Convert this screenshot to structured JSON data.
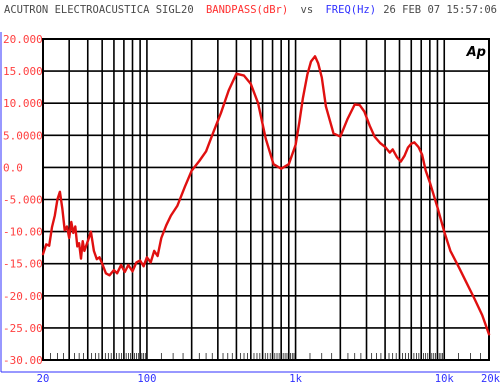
{
  "header": {
    "device": "ACUTRON ELECTROACUSTICA SIGL20",
    "y_measure": "BANDPASS(dBr)",
    "vs": "vs",
    "x_measure": "FREQ(Hz)",
    "date": "26 FEB 07 15:57:06"
  },
  "logo": {
    "text": "Ap"
  },
  "colors": {
    "device_text": "#4a4a4a",
    "y_label": "#ff3030",
    "x_label": "#3030ff",
    "trace": "#e01010",
    "grid": "#000000",
    "axis": "#3030ff"
  },
  "chart_data": {
    "type": "line",
    "x_scale": "log",
    "xlim": [
      20,
      20000
    ],
    "ylim": [
      -30,
      20
    ],
    "grid": true,
    "xticks": [
      {
        "value": 20,
        "label": "20"
      },
      {
        "value": 100,
        "label": "100"
      },
      {
        "value": 1000,
        "label": "1k"
      },
      {
        "value": 10000,
        "label": "10k"
      },
      {
        "value": 20000,
        "label": "20k"
      }
    ],
    "yticks": [
      {
        "value": 20,
        "label": "20.000"
      },
      {
        "value": 15,
        "label": "15.000"
      },
      {
        "value": 10,
        "label": "10.000"
      },
      {
        "value": 5,
        "label": "5.0000"
      },
      {
        "value": 0,
        "label": "0.0"
      },
      {
        "value": -5,
        "label": "-5.000"
      },
      {
        "value": -10,
        "label": "-10.00"
      },
      {
        "value": -15,
        "label": "-15.00"
      },
      {
        "value": -20,
        "label": "-20.00"
      },
      {
        "value": -25,
        "label": "-25.00"
      },
      {
        "value": -30,
        "label": "-30.00"
      }
    ],
    "series": [
      {
        "x": [
          20,
          21,
          22,
          23,
          24,
          25,
          26,
          27,
          28,
          29,
          30,
          31,
          32,
          33,
          34,
          35,
          36,
          37,
          38,
          40,
          42,
          44,
          46,
          48,
          50,
          53,
          56,
          60,
          63,
          67,
          71,
          75,
          80,
          85,
          90,
          95,
          100,
          106,
          112,
          118,
          125,
          135,
          145,
          160,
          180,
          200,
          225,
          250,
          280,
          315,
          355,
          400,
          450,
          500,
          560,
          630,
          710,
          800,
          900,
          1000,
          1060,
          1120,
          1200,
          1270,
          1350,
          1420,
          1500,
          1600,
          1800,
          2000,
          2240,
          2500,
          2700,
          2900,
          3150,
          3400,
          3700,
          4000,
          4300,
          4500,
          4800,
          5100,
          5400,
          5700,
          6000,
          6300,
          6700,
          7100,
          7500,
          8000,
          9000,
          10000,
          11000,
          12500,
          14000,
          16000,
          18000,
          20000
        ],
        "y": [
          -13.5,
          -12.0,
          -12.2,
          -9.3,
          -7.5,
          -5.0,
          -3.8,
          -6.5,
          -9.8,
          -9.2,
          -11.0,
          -8.5,
          -10.2,
          -9.2,
          -12.3,
          -11.8,
          -14.2,
          -11.5,
          -13.0,
          -11.5,
          -10.0,
          -13.0,
          -14.3,
          -14.0,
          -15.0,
          -16.5,
          -16.8,
          -16.0,
          -16.5,
          -15.2,
          -16.3,
          -15.2,
          -16.2,
          -14.8,
          -14.5,
          -15.4,
          -14.0,
          -14.8,
          -13.0,
          -13.8,
          -11.0,
          -9.0,
          -7.5,
          -6.0,
          -3.0,
          -0.5,
          1.0,
          2.5,
          5.5,
          8.5,
          12.0,
          14.6,
          14.3,
          13.0,
          10.0,
          4.5,
          0.5,
          -0.2,
          0.5,
          3.5,
          7.0,
          10.8,
          14.5,
          16.5,
          17.3,
          16.2,
          14.0,
          9.5,
          5.3,
          4.8,
          7.6,
          9.8,
          9.7,
          8.7,
          6.5,
          4.8,
          3.8,
          3.2,
          2.3,
          2.8,
          1.6,
          0.9,
          1.8,
          3.1,
          3.7,
          3.9,
          3.2,
          2.0,
          -0.5,
          -2.3,
          -6.2,
          -10.0,
          -13.0,
          -15.5,
          -17.8,
          -20.5,
          -23.0,
          -26.0
        ]
      }
    ]
  }
}
